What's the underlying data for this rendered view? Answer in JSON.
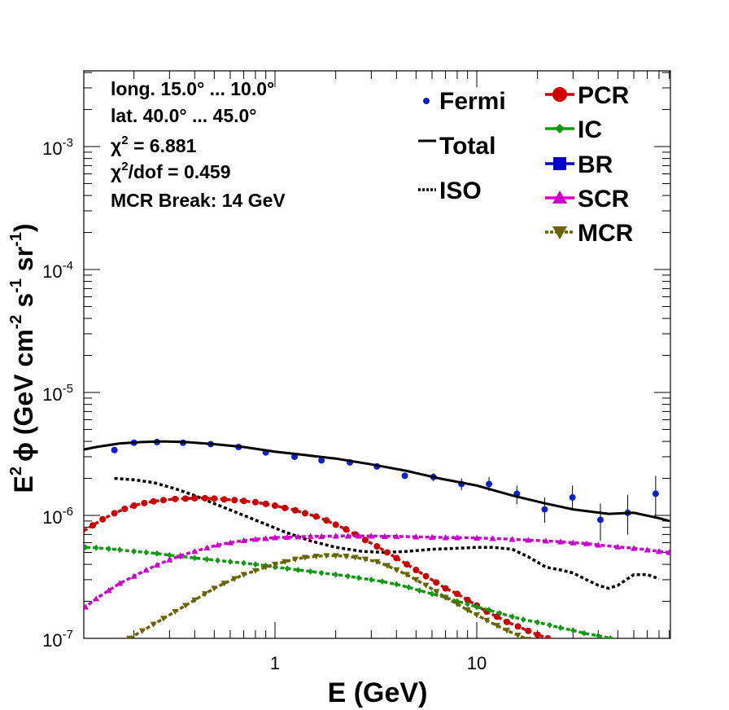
{
  "chart_data": {
    "type": "line",
    "x_scale": "log",
    "y_scale": "log",
    "xlim": [
      0.1,
      1000
    ],
    "ylim": [
      1e-07,
      0.004
    ],
    "xlabel": "E (GeV)",
    "ylabel_parts": {
      "main": "E",
      "sup1": "2",
      "phi": "ϕ (GeV cm",
      "sup2": "-2",
      "s": " s",
      "sup3": "-1",
      "sr": " sr",
      "sup4": "-1",
      "close": ")"
    },
    "x_tick_labels": [
      {
        "value": 1,
        "label": "1"
      },
      {
        "value": 10,
        "label": "10"
      }
    ],
    "y_tick_labels": [
      {
        "value": 1e-07,
        "base": "10",
        "exp": "-7"
      },
      {
        "value": 1e-06,
        "base": "10",
        "exp": "-6"
      },
      {
        "value": 1e-05,
        "base": "10",
        "exp": "-5"
      },
      {
        "value": 0.0001,
        "base": "10",
        "exp": "-4"
      },
      {
        "value": 0.001,
        "base": "10",
        "exp": "-3"
      }
    ],
    "info": {
      "line1": "long. 15.0° ... 10.0°",
      "line2": "lat. 40.0° ... 45.0°",
      "chi2_prefix": "χ",
      "chi2_sup": "2",
      "chi2_value": " = 6.881",
      "chidof_prefix": "χ",
      "chidof_sup": "2",
      "chidof_value": "/dof = 0.459",
      "line5": "MCR Break: 14 GeV"
    },
    "legend_left": [
      {
        "name": "Fermi",
        "style": "point",
        "color": "#1020c8"
      },
      {
        "name": "Total",
        "style": "solid",
        "color": "#000000"
      },
      {
        "name": "ISO",
        "style": "dotted",
        "color": "#000000"
      }
    ],
    "legend_right": [
      {
        "name": "PCR",
        "marker": "circle",
        "color": "#cc0000"
      },
      {
        "name": "IC",
        "marker": "diamond",
        "color": "#119911"
      },
      {
        "name": "BR",
        "marker": "square",
        "color": "#0000cc"
      },
      {
        "name": "SCR",
        "marker": "triangle-up",
        "color": "#cc00cc"
      },
      {
        "name": "MCR",
        "marker": "triangle-down",
        "color": "#666600"
      }
    ],
    "series": [
      {
        "name": "Fermi",
        "kind": "points",
        "color": "#1020c8",
        "x": [
          0.16,
          0.2,
          0.26,
          0.35,
          0.48,
          0.66,
          0.9,
          1.25,
          1.7,
          2.35,
          3.2,
          4.4,
          6.1,
          8.4,
          11.5,
          15.8,
          21.7,
          29.8,
          41,
          56,
          77
        ],
        "y": [
          3.4e-06,
          3.9e-06,
          3.95e-06,
          3.9e-06,
          3.8e-06,
          3.6e-06,
          3.25e-06,
          3e-06,
          2.8e-06,
          2.7e-06,
          2.5e-06,
          2.1e-06,
          2.05e-06,
          1.8e-06,
          1.8e-06,
          1.5e-06,
          1.12e-06,
          1.4e-06,
          9.2e-07,
          1.05e-06,
          1.5e-06
        ],
        "err_lo": [
          3.3e-06,
          3.85e-06,
          3.9e-06,
          3.85e-06,
          3.75e-06,
          3.55e-06,
          3.2e-06,
          2.95e-06,
          2.75e-06,
          2.62e-06,
          2.4e-06,
          1.98e-06,
          1.9e-06,
          1.6e-06,
          1.58e-06,
          1.23e-06,
          8.7e-07,
          1.1e-06,
          6.2e-07,
          7e-07,
          9.5e-07
        ],
        "err_hi": [
          3.5e-06,
          3.95e-06,
          4e-06,
          3.95e-06,
          3.85e-06,
          3.65e-06,
          3.3e-06,
          3.05e-06,
          2.85e-06,
          2.8e-06,
          2.6e-06,
          2.22e-06,
          2.2e-06,
          2e-06,
          2.05e-06,
          1.75e-06,
          1.4e-06,
          1.75e-06,
          1.25e-06,
          1.47e-06,
          2.1e-06
        ]
      },
      {
        "name": "Total",
        "kind": "solid",
        "color": "#000000",
        "x": [
          0.1,
          0.13,
          0.17,
          0.22,
          0.28,
          0.36,
          0.5,
          0.7,
          1.0,
          1.4,
          2.0,
          3.0,
          4.5,
          6.5,
          10,
          15,
          22,
          30,
          45,
          60,
          80,
          90
        ],
        "y": [
          3.3e-06,
          3.6e-06,
          3.85e-06,
          3.95e-06,
          4e-06,
          3.95e-06,
          3.8e-06,
          3.6e-06,
          3.3e-06,
          3.1e-06,
          2.9e-06,
          2.6e-06,
          2.3e-06,
          2e-06,
          1.75e-06,
          1.45e-06,
          1.25e-06,
          1.12e-06,
          1.03e-06,
          1.05e-06,
          9.5e-07,
          9e-07
        ]
      },
      {
        "name": "ISO",
        "kind": "dotted",
        "color": "#000000",
        "x": [
          0.16,
          0.2,
          0.25,
          0.32,
          0.4,
          0.5,
          0.65,
          0.85,
          1.1,
          1.5,
          2.0,
          2.7,
          3.5,
          4.5,
          6,
          8,
          10,
          12,
          15,
          18,
          22,
          26,
          30,
          35,
          40,
          45,
          50,
          60,
          70,
          80
        ],
        "y": [
          2e-06,
          1.95e-06,
          1.85e-06,
          1.65e-06,
          1.45e-06,
          1.25e-06,
          1.05e-06,
          8.8e-07,
          7.4e-07,
          6.2e-07,
          5.5e-07,
          5.1e-07,
          5e-07,
          5.1e-07,
          5.3e-07,
          5.4e-07,
          5.5e-07,
          5.5e-07,
          5.3e-07,
          4.6e-07,
          3.8e-07,
          3.6e-07,
          3.4e-07,
          3e-07,
          2.7e-07,
          2.55e-07,
          2.7e-07,
          3.3e-07,
          3.3e-07,
          3.05e-07
        ]
      },
      {
        "name": "PCR",
        "kind": "marked",
        "marker": "circle",
        "color": "#cc0000",
        "x": [
          0.1,
          0.11,
          0.125,
          0.14,
          0.16,
          0.18,
          0.2,
          0.225,
          0.25,
          0.28,
          0.32,
          0.36,
          0.4,
          0.45,
          0.5,
          0.56,
          0.63,
          0.7,
          0.8,
          0.9,
          1.0,
          1.12,
          1.26,
          1.41,
          1.6,
          1.8,
          2.0,
          2.25,
          2.5,
          2.8,
          3.2,
          3.6,
          4.0,
          4.5,
          5.0,
          5.6,
          6.3,
          7.0,
          8.0,
          9.0,
          10,
          11.2,
          12.6,
          14.1,
          16,
          18,
          20,
          22.5,
          25,
          28
        ],
        "y": [
          6.5e-07,
          7.3e-07,
          8.3e-07,
          9.3e-07,
          1.04e-06,
          1.13e-06,
          1.2e-06,
          1.26e-06,
          1.3e-06,
          1.33e-06,
          1.36e-06,
          1.37e-06,
          1.38e-06,
          1.38e-06,
          1.37e-06,
          1.35e-06,
          1.33e-06,
          1.31e-06,
          1.28e-06,
          1.24e-06,
          1.2e-06,
          1.15e-06,
          1.1e-06,
          1.04e-06,
          9.8e-07,
          9.1e-07,
          8.4e-07,
          7.7e-07,
          7e-07,
          6.3e-07,
          5.6e-07,
          5e-07,
          4.5e-07,
          4e-07,
          3.6e-07,
          3.2e-07,
          2.85e-07,
          2.55e-07,
          2.3e-07,
          2.05e-07,
          1.85e-07,
          1.65e-07,
          1.5e-07,
          1.36e-07,
          1.25e-07,
          1.15e-07,
          1.07e-07,
          1e-07,
          9.4e-08,
          8.8e-08
        ]
      },
      {
        "name": "IC",
        "kind": "marked",
        "marker": "diamond",
        "color": "#119911",
        "x": [
          0.1,
          0.115,
          0.13,
          0.15,
          0.17,
          0.2,
          0.23,
          0.26,
          0.3,
          0.34,
          0.4,
          0.46,
          0.52,
          0.6,
          0.7,
          0.8,
          0.9,
          1.0,
          1.15,
          1.3,
          1.5,
          1.7,
          2.0,
          2.3,
          2.6,
          3.0,
          3.4,
          4.0,
          4.6,
          5.2,
          6.0,
          7.0,
          8.0,
          9.0,
          10,
          11.5,
          13,
          15,
          17,
          20,
          23,
          26,
          30,
          34,
          40,
          46,
          52,
          60
        ],
        "y": [
          5.6e-07,
          5.5e-07,
          5.45e-07,
          5.35e-07,
          5.25e-07,
          5.1e-07,
          5e-07,
          4.9e-07,
          4.75e-07,
          4.65e-07,
          4.5e-07,
          4.4e-07,
          4.3e-07,
          4.2e-07,
          4.1e-07,
          4e-07,
          3.9e-07,
          3.8e-07,
          3.7e-07,
          3.6e-07,
          3.5e-07,
          3.4e-07,
          3.3e-07,
          3.2e-07,
          3.1e-07,
          3e-07,
          2.9e-07,
          2.75e-07,
          2.6e-07,
          2.45e-07,
          2.3e-07,
          2.15e-07,
          2e-07,
          1.9e-07,
          1.8e-07,
          1.7e-07,
          1.6e-07,
          1.5e-07,
          1.42e-07,
          1.35e-07,
          1.28e-07,
          1.22e-07,
          1.16e-07,
          1.1e-07,
          1.05e-07,
          1e-07,
          9.6e-08,
          9.2e-08
        ]
      },
      {
        "name": "SCR",
        "kind": "marked",
        "marker": "triangle-up",
        "color": "#cc00cc",
        "x": [
          0.1,
          0.115,
          0.13,
          0.15,
          0.17,
          0.2,
          0.23,
          0.26,
          0.3,
          0.34,
          0.4,
          0.46,
          0.52,
          0.6,
          0.7,
          0.8,
          0.9,
          1.0,
          1.15,
          1.3,
          1.5,
          1.7,
          2.0,
          2.3,
          2.6,
          3.0,
          3.5,
          4.0,
          5.0,
          6.0,
          7.0,
          8.0,
          10,
          12,
          15,
          18,
          22,
          26,
          30,
          35,
          40,
          50,
          60,
          70,
          80,
          90
        ],
        "y": [
          1.5e-07,
          1.8e-07,
          2.1e-07,
          2.45e-07,
          2.8e-07,
          3.2e-07,
          3.6e-07,
          3.95e-07,
          4.35e-07,
          4.7e-07,
          5.1e-07,
          5.45e-07,
          5.75e-07,
          6e-07,
          6.25e-07,
          6.4e-07,
          6.5e-07,
          6.6e-07,
          6.65e-07,
          6.7e-07,
          6.75e-07,
          6.75e-07,
          6.8e-07,
          6.8e-07,
          6.8e-07,
          6.8e-07,
          6.75e-07,
          6.75e-07,
          6.7e-07,
          6.65e-07,
          6.6e-07,
          6.6e-07,
          6.55e-07,
          6.5e-07,
          6.4e-07,
          6.3e-07,
          6.2e-07,
          6.1e-07,
          6e-07,
          5.9e-07,
          5.75e-07,
          5.55e-07,
          5.4e-07,
          5.25e-07,
          5.1e-07,
          5e-07
        ]
      },
      {
        "name": "MCR",
        "kind": "marked",
        "marker": "triangle-down",
        "color": "#666600",
        "x": [
          0.19,
          0.22,
          0.25,
          0.28,
          0.32,
          0.36,
          0.4,
          0.45,
          0.5,
          0.56,
          0.63,
          0.7,
          0.8,
          0.9,
          1.0,
          1.12,
          1.26,
          1.41,
          1.6,
          1.8,
          2.0,
          2.25,
          2.5,
          2.8,
          3.2,
          3.6,
          4.0,
          4.5,
          5.0,
          5.6,
          6.3,
          7.0,
          8.0,
          9.0,
          10,
          11.2,
          12.6,
          14.1,
          16,
          18,
          20,
          22.5
        ],
        "y": [
          1e-07,
          1.15e-07,
          1.3e-07,
          1.45e-07,
          1.65e-07,
          1.85e-07,
          2.05e-07,
          2.3e-07,
          2.55e-07,
          2.8e-07,
          3.05e-07,
          3.3e-07,
          3.55e-07,
          3.8e-07,
          4e-07,
          4.2e-07,
          4.4e-07,
          4.55e-07,
          4.65e-07,
          4.7e-07,
          4.7e-07,
          4.65e-07,
          4.55e-07,
          4.4e-07,
          4.2e-07,
          3.9e-07,
          3.6e-07,
          3.3e-07,
          3e-07,
          2.7e-07,
          2.4e-07,
          2.15e-07,
          1.9e-07,
          1.7e-07,
          1.55e-07,
          1.4e-07,
          1.27e-07,
          1.16e-07,
          1.06e-07,
          9.8e-08,
          9.2e-08,
          8.6e-08
        ]
      }
    ]
  }
}
